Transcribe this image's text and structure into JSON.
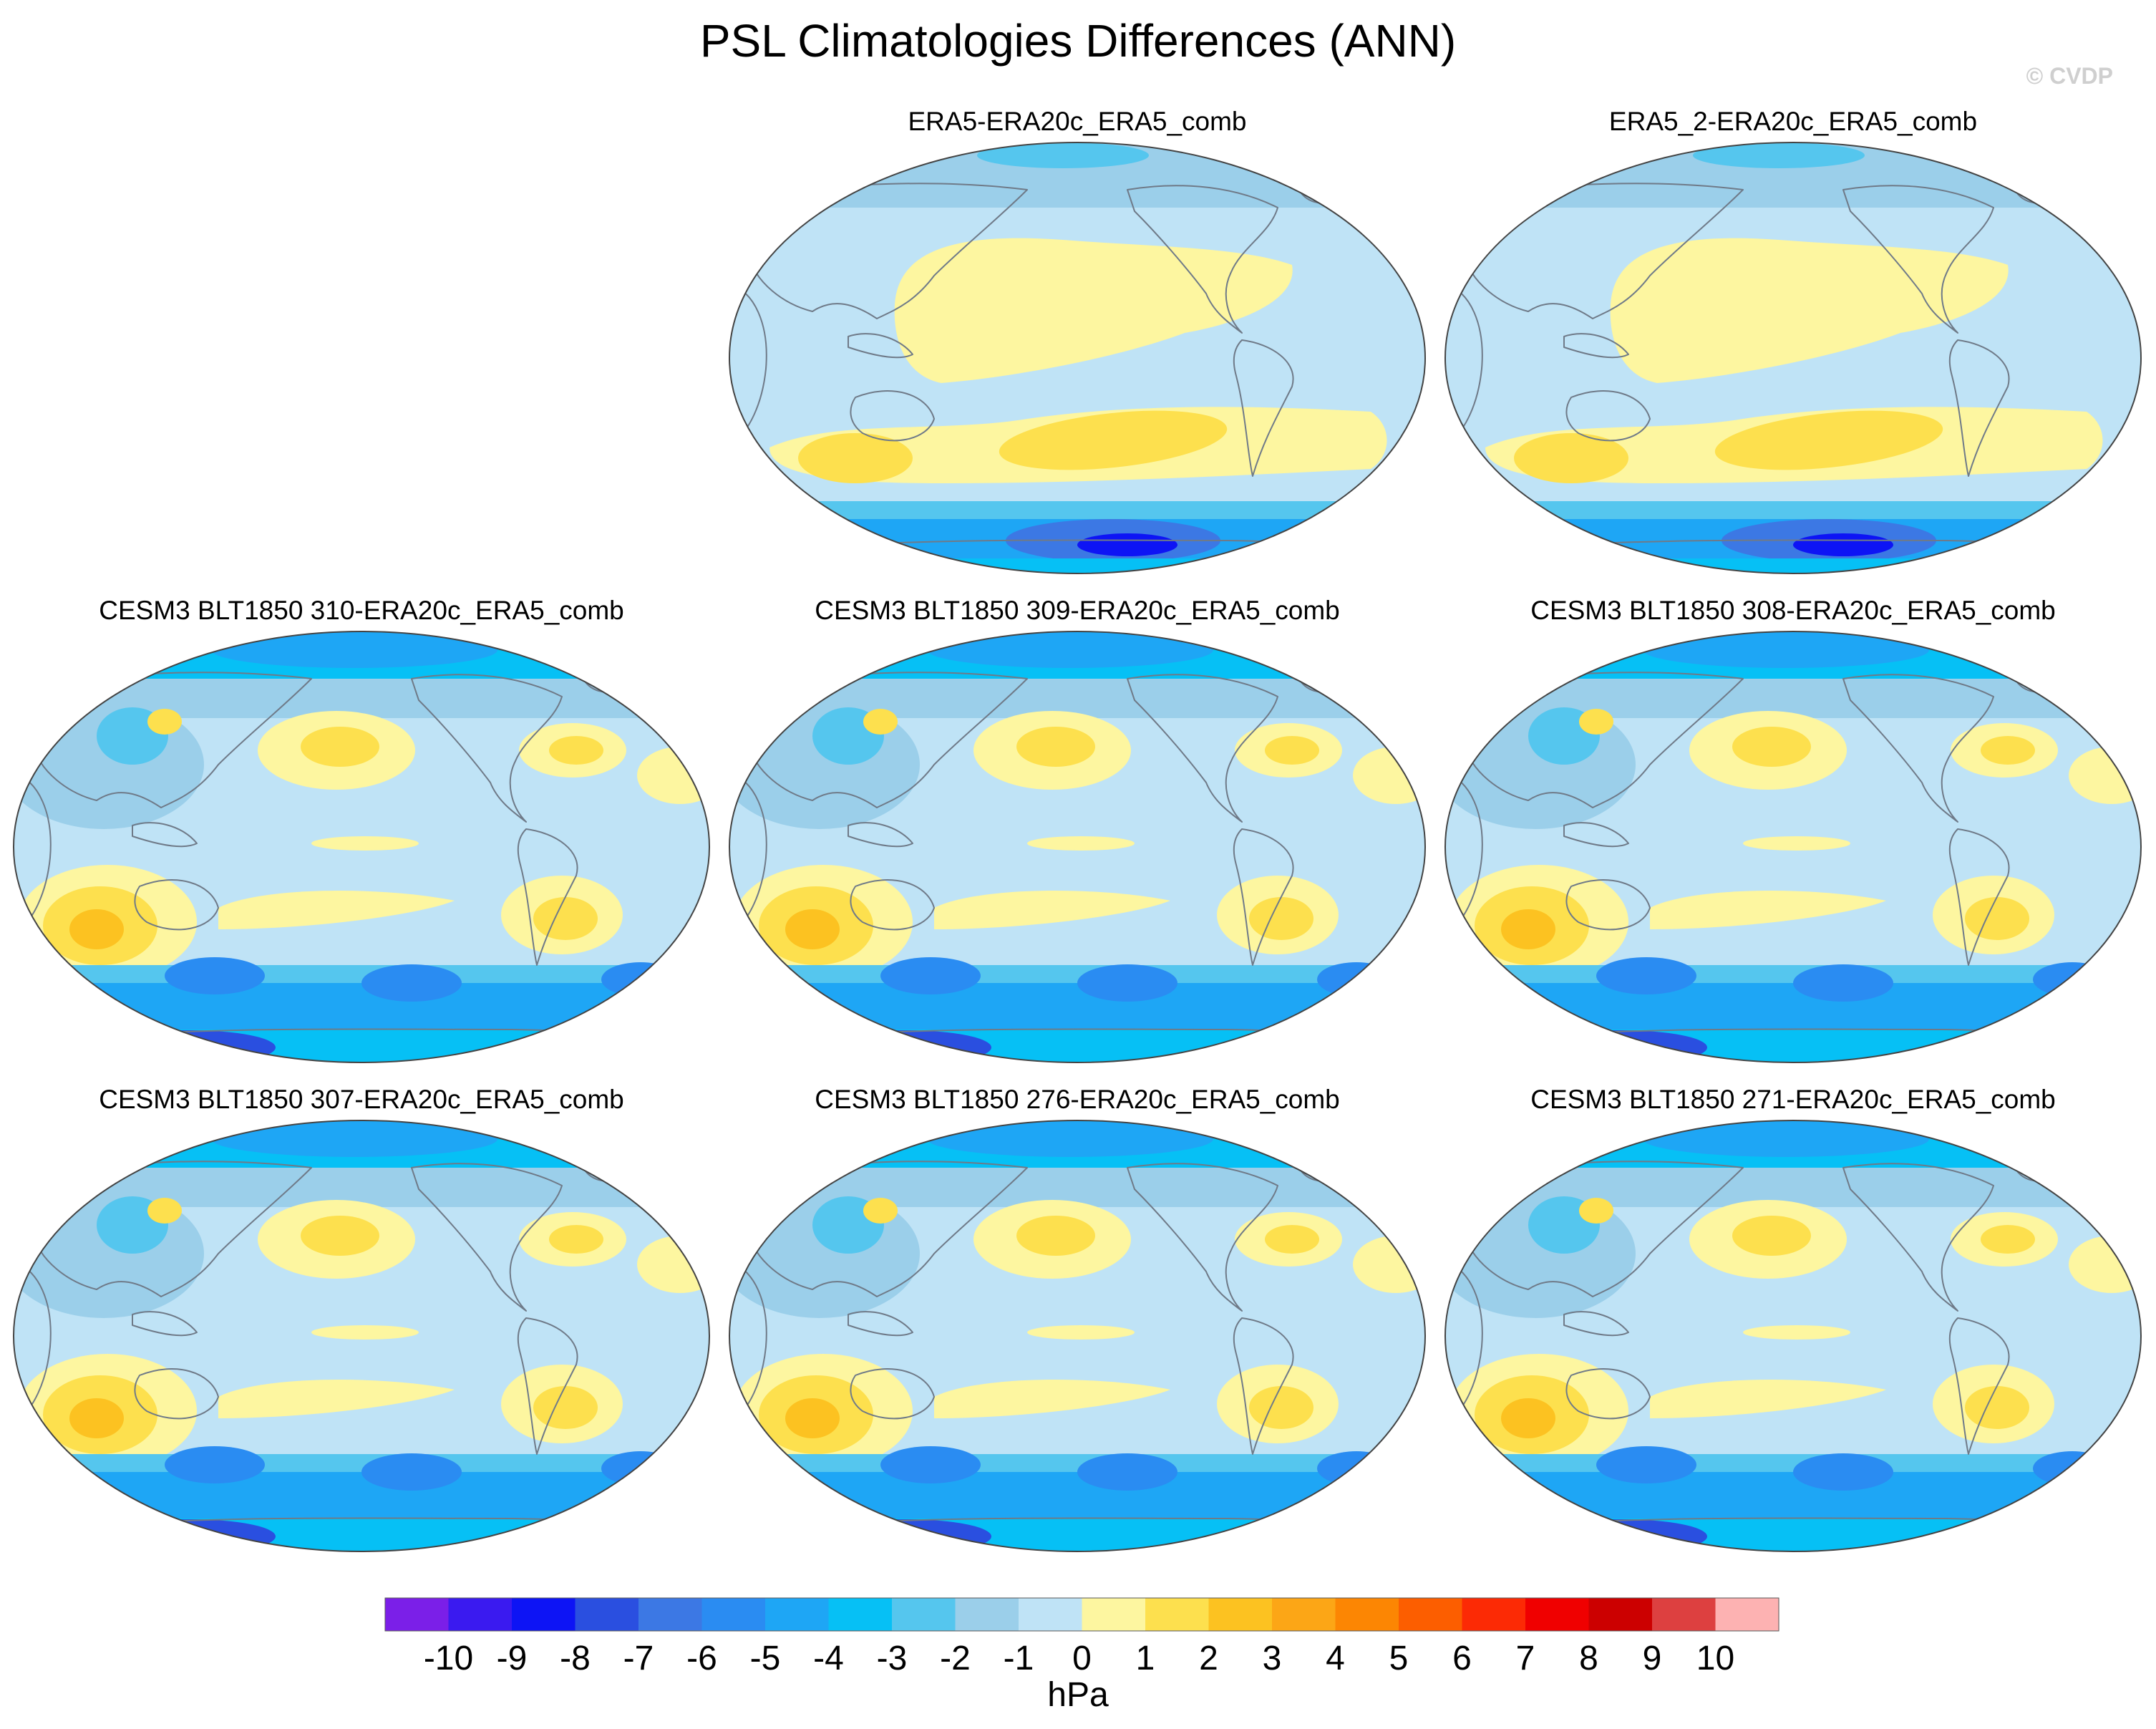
{
  "figure": {
    "title": "PSL Climatologies Differences (ANN)",
    "watermark": "© CVDP"
  },
  "chart_data": {
    "type": "heatmap",
    "variable": "PSL",
    "season": "ANN",
    "units": "hPa",
    "projection": "Robinson (Pacific-centered)",
    "colorbar": {
      "tick_labels": [
        "-10",
        "-9",
        "-8",
        "-7",
        "-6",
        "-5",
        "-4",
        "-3",
        "-2",
        "-1",
        "0",
        "1",
        "2",
        "3",
        "4",
        "5",
        "6",
        "7",
        "8",
        "9",
        "10"
      ],
      "colors": [
        "#7b1fe8",
        "#3a1af0",
        "#0d14f5",
        "#2a4fe0",
        "#3c78e4",
        "#2a8cf2",
        "#1ea6f5",
        "#06c0f5",
        "#55c6ee",
        "#9bcfea",
        "#bfe3f6",
        "#fdf6a0",
        "#fde04e",
        "#fcc221",
        "#fca616",
        "#fc8603",
        "#fc5e00",
        "#fc2a05",
        "#f00000",
        "#cc0000",
        "#dd4040",
        "#fdb2b2"
      ]
    },
    "panels": [
      {
        "id": "era5",
        "label": "ERA5-ERA20c_ERA5_comb",
        "style": "obs"
      },
      {
        "id": "era5_2",
        "label": "ERA5_2-ERA20c_ERA5_comb",
        "style": "obs"
      },
      {
        "id": "m310",
        "label": "CESM3 BLT1850 310-ERA20c_ERA5_comb",
        "style": "model"
      },
      {
        "id": "m309",
        "label": "CESM3 BLT1850 309-ERA20c_ERA5_comb",
        "style": "model"
      },
      {
        "id": "m308",
        "label": "CESM3 BLT1850 308-ERA20c_ERA5_comb",
        "style": "model"
      },
      {
        "id": "m307",
        "label": "CESM3 BLT1850 307-ERA20c_ERA5_comb",
        "style": "model"
      },
      {
        "id": "m276",
        "label": "CESM3 BLT1850 276-ERA20c_ERA5_comb",
        "style": "model"
      },
      {
        "id": "m271",
        "label": "CESM3 BLT1850 271-ERA20c_ERA5_comb",
        "style": "model"
      }
    ]
  }
}
